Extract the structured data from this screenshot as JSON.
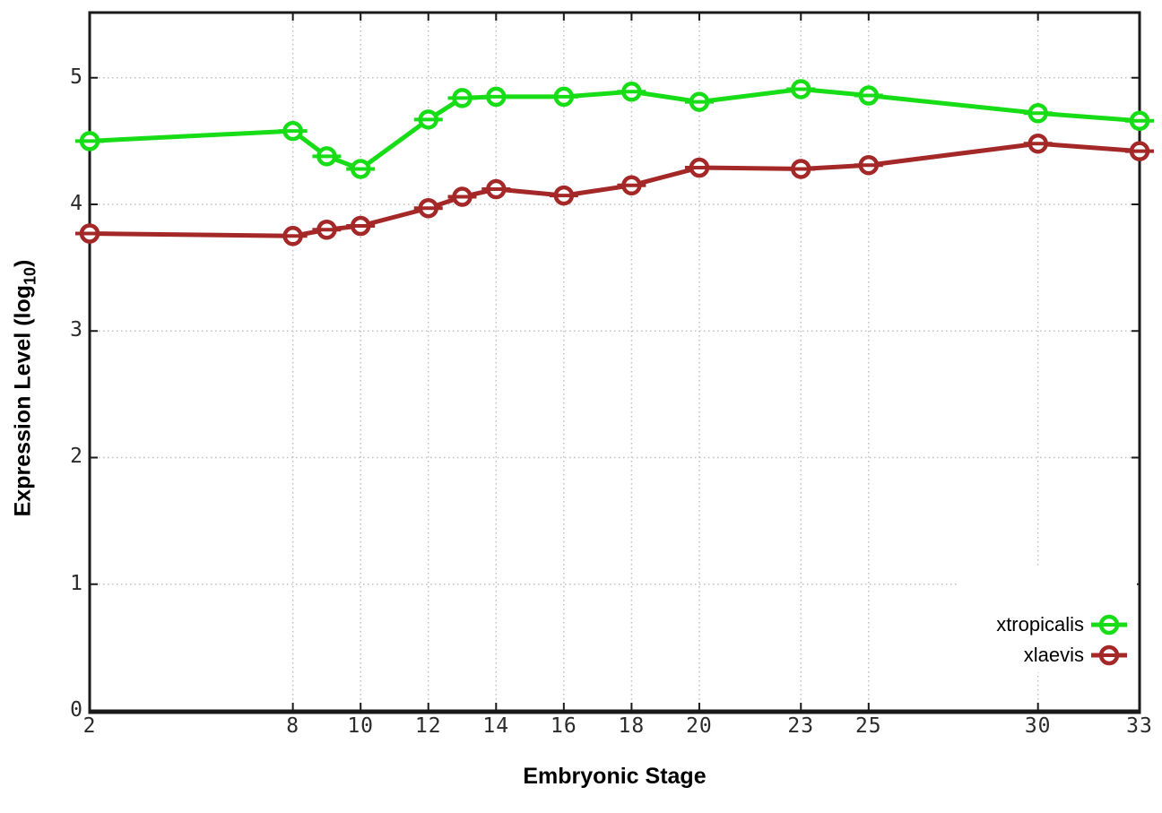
{
  "figure": {
    "background": "#ffffff",
    "title": ""
  },
  "y_axis": {
    "label_prefix": "Expression Level (log",
    "label_sub": "10",
    "label_suffix": ")"
  },
  "chart_data": {
    "type": "line",
    "title": "",
    "xlabel": "Embryonic Stage",
    "ylabel": "Expression Level (log10)",
    "x": [
      2,
      8,
      9,
      10,
      12,
      13,
      14,
      16,
      18,
      20,
      23,
      25,
      30,
      33
    ],
    "x_ticks": [
      2,
      8,
      10,
      12,
      14,
      16,
      18,
      20,
      23,
      25,
      30,
      33
    ],
    "y_ticks": [
      0,
      1,
      2,
      3,
      4,
      5
    ],
    "xlim": [
      2,
      33
    ],
    "ylim": [
      0,
      5.52
    ],
    "grid": true,
    "grid_style": "dotted",
    "legend_position": "inside-bottom-right",
    "marker": "open-circle-with-horizontal-errorbar-cap",
    "series": [
      {
        "name": "xtropicalis",
        "color": "#17dd17",
        "values": [
          4.5,
          4.58,
          4.38,
          4.28,
          4.67,
          4.84,
          4.85,
          4.85,
          4.89,
          4.81,
          4.91,
          4.86,
          4.72,
          4.66
        ]
      },
      {
        "name": "xlaevis",
        "color": "#a52828",
        "values": [
          3.77,
          3.75,
          3.8,
          3.83,
          3.97,
          4.06,
          4.12,
          4.07,
          4.15,
          4.29,
          4.28,
          4.31,
          4.48,
          4.42
        ]
      }
    ]
  },
  "colors": {
    "border": "#1a1a1a",
    "grid": "#c0c0c0",
    "tick_label": "#2b2b2b"
  }
}
